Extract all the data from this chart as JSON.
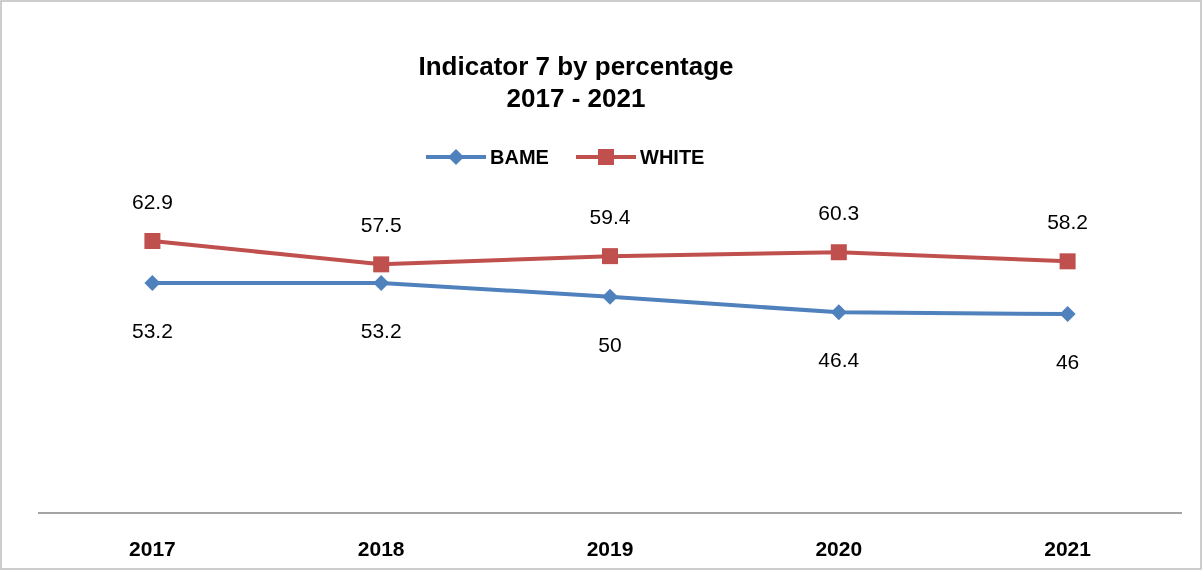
{
  "chart_data": {
    "type": "line",
    "title": "Indicator 7 by percentage\n2017 - 2021",
    "categories": [
      "2017",
      "2018",
      "2019",
      "2020",
      "2021"
    ],
    "series": [
      {
        "name": "BAME",
        "color": "#4f81bd",
        "marker": "diamond",
        "values": [
          53.2,
          53.2,
          50,
          46.4,
          46
        ]
      },
      {
        "name": "WHITE",
        "color": "#c0504d",
        "marker": "square",
        "values": [
          62.9,
          57.5,
          59.4,
          60.3,
          58.2
        ]
      }
    ],
    "tick_labels": "x",
    "data_labels": true,
    "legend": "top"
  }
}
